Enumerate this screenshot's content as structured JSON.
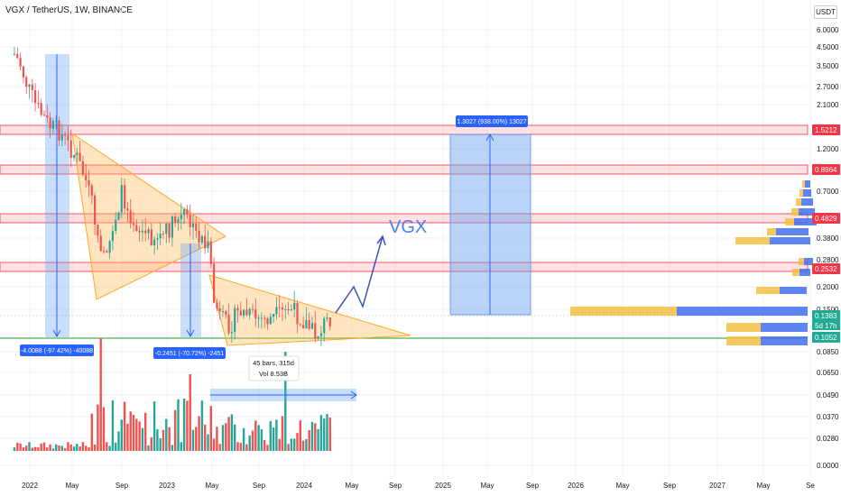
{
  "header": {
    "symbol_title": "VGX / TetherUS, 1W, BINANCE",
    "currency_badge": "USDT"
  },
  "chart_data": {
    "type": "candlestick",
    "title": "VGX / TetherUS, 1W, BINANCE",
    "y_axis": {
      "scale": "log",
      "unit": "USDT",
      "ticks": [
        "6.0000",
        "4.5000",
        "3.5000",
        "2.7000",
        "2.1000",
        "1.2000",
        "0.7000",
        "0.3800",
        "0.2800",
        "0.2000",
        "0.1500",
        "0.0850",
        "0.0650",
        "0.0490",
        "0.0370",
        "0.0280",
        "0.0000"
      ]
    },
    "x_axis": {
      "ticks": [
        "2022",
        "May",
        "Sep",
        "2023",
        "May",
        "Sep",
        "2024",
        "May",
        "Sep",
        "2025",
        "May",
        "Sep",
        "2026",
        "May",
        "Sep",
        "2027",
        "May",
        "Se"
      ]
    },
    "price_levels": [
      {
        "label": "1.5212",
        "color": "#f23645"
      },
      {
        "label": "0.8964",
        "color": "#f23645"
      },
      {
        "label": "0.4829",
        "color": "#f23645"
      },
      {
        "label": "0.2532",
        "color": "#f23645"
      },
      {
        "label": "0.1383",
        "color": "#22ab94"
      },
      {
        "label": "0.1052",
        "color": "#22ab94"
      }
    ],
    "last_price_countdown": "5d 17h",
    "measurements": [
      {
        "label": "-4.0088 (-97.42%) -40088"
      },
      {
        "label": "-0.2451 (-70.72%) -2451"
      },
      {
        "label": "1.3027 (938.00%) 13027"
      }
    ],
    "date_range": {
      "bars": "45 bars, 315d",
      "volume": "Vol 8.53B"
    },
    "annotation_text": "VGX",
    "colors": {
      "up": "#26a69a",
      "down": "#ef5350",
      "volume_up": "#26a69a",
      "volume_down": "#ef5350",
      "triangle_fill": "#ffcc80",
      "triangle_stroke": "#ffa726",
      "measure_fill": "#90caf9",
      "arrow": "#3f51b5"
    }
  }
}
